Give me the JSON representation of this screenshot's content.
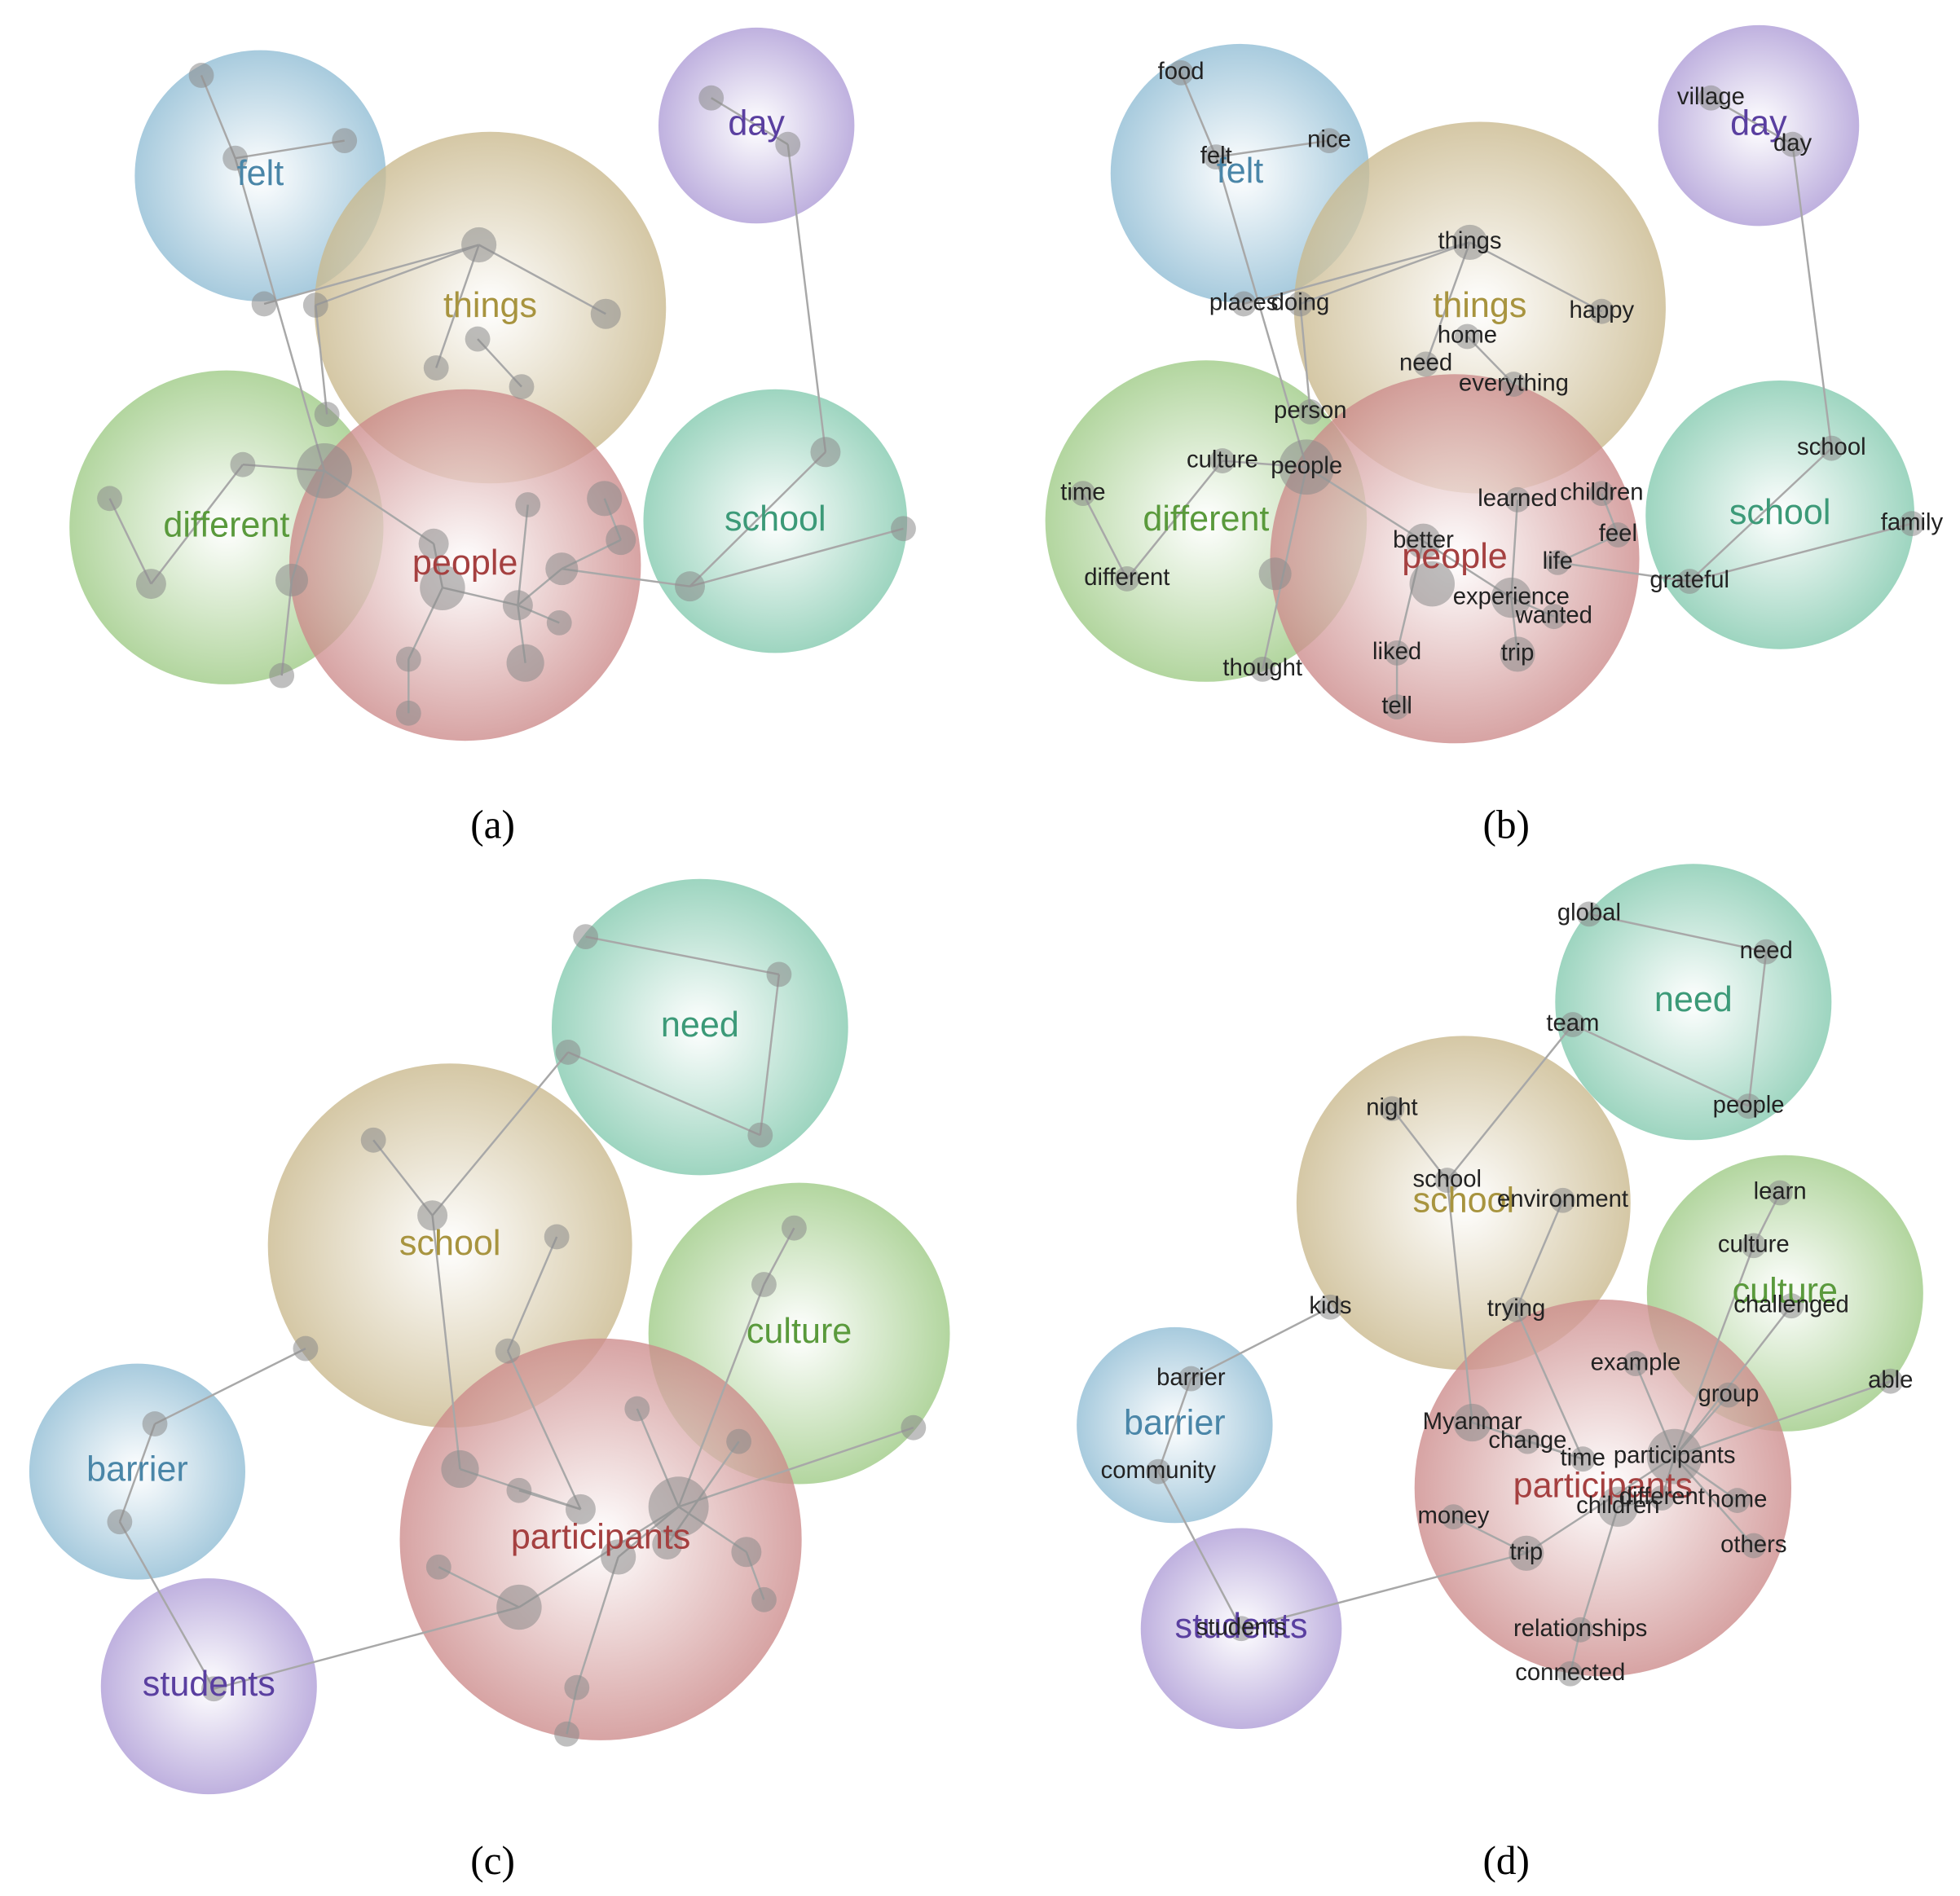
{
  "panels": [
    {
      "label": "(a)",
      "themes": [
        "felt",
        "things",
        "day",
        "different",
        "people",
        "school"
      ]
    },
    {
      "label": "(b)",
      "themes": [
        "felt",
        "things",
        "day",
        "different",
        "people",
        "school"
      ],
      "concepts": [
        "food",
        "nice",
        "felt",
        "village",
        "day",
        "things",
        "happy",
        "places",
        "doing",
        "home",
        "need",
        "everything",
        "person",
        "culture",
        "people",
        "time",
        "different",
        "learned",
        "children",
        "feel",
        "better",
        "life",
        "experience",
        "wanted",
        "liked",
        "trip",
        "tell",
        "thought",
        "school",
        "family",
        "grateful"
      ]
    },
    {
      "label": "(c)",
      "themes": [
        "need",
        "school",
        "culture",
        "barrier",
        "students",
        "participants"
      ]
    },
    {
      "label": "(d)",
      "themes": [
        "need",
        "school",
        "culture",
        "barrier",
        "students",
        "participants"
      ],
      "concepts": [
        "global",
        "need",
        "team",
        "people",
        "night",
        "school",
        "environment",
        "learn",
        "culture",
        "kids",
        "trying",
        "challenged",
        "barrier",
        "example",
        "group",
        "able",
        "Myanmar",
        "change",
        "time",
        "participants",
        "community",
        "different",
        "home",
        "children",
        "money",
        "others",
        "trip",
        "students",
        "relationships",
        "connected"
      ]
    }
  ]
}
